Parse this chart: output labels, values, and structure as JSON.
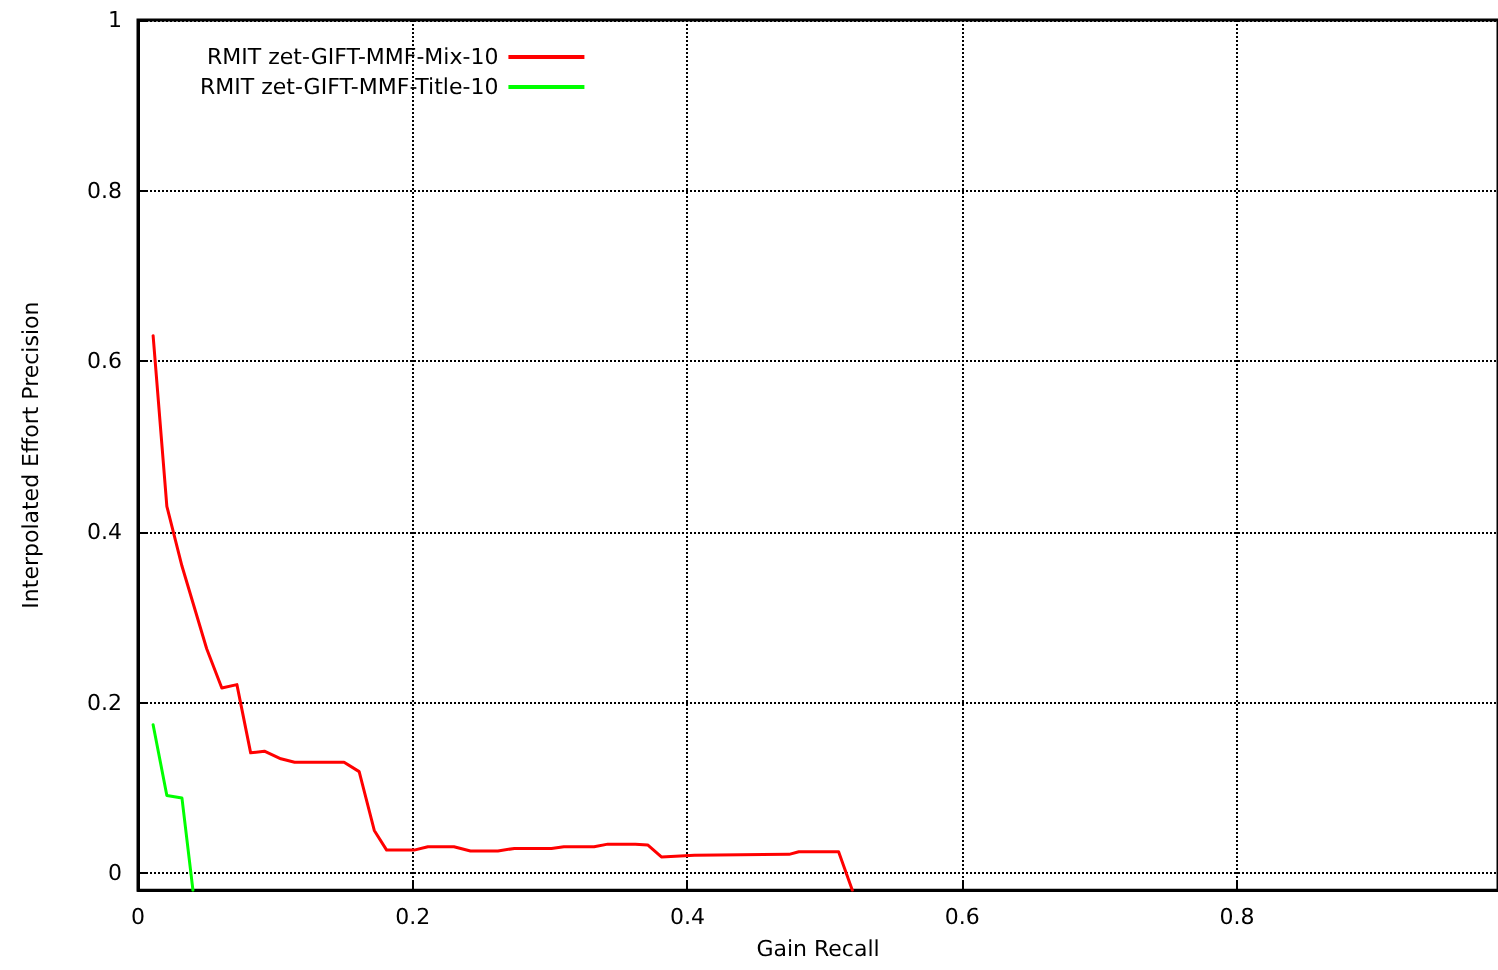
{
  "chart_data": {
    "type": "line",
    "xlabel": "Gain Recall",
    "ylabel": "Interpolated Effort Precision",
    "xlim": [
      0,
      0.99
    ],
    "xticks": [
      0,
      0.2,
      0.4,
      0.6,
      0.8
    ],
    "ylim": [
      -0.02,
      1
    ],
    "yticks": [
      0,
      0.2,
      0.4,
      0.6,
      0.8,
      1
    ],
    "grid": true,
    "legend": "top left",
    "marker": "none",
    "line_style": "solid",
    "series": [
      {
        "name": "RMIT zet-GIFT-MMF-Mix-10",
        "color": "#ff0000",
        "x": [
          0.011,
          0.021,
          0.032,
          0.05,
          0.061,
          0.072,
          0.082,
          0.092,
          0.104,
          0.114,
          0.15,
          0.161,
          0.172,
          0.181,
          0.201,
          0.211,
          0.23,
          0.242,
          0.262,
          0.274,
          0.301,
          0.31,
          0.332,
          0.342,
          0.362,
          0.371,
          0.381,
          0.405,
          0.474,
          0.481,
          0.51,
          0.52
        ],
        "values": [
          0.63,
          0.43,
          0.36,
          0.263,
          0.217,
          0.221,
          0.141,
          0.143,
          0.134,
          0.13,
          0.13,
          0.119,
          0.05,
          0.027,
          0.027,
          0.031,
          0.031,
          0.026,
          0.026,
          0.029,
          0.029,
          0.031,
          0.031,
          0.034,
          0.034,
          0.033,
          0.019,
          0.021,
          0.022,
          0.025,
          0.025,
          -0.02
        ]
      },
      {
        "name": "RMIT zet-GIFT-MMF-Title-10",
        "color": "#00ff00",
        "x": [
          0.011,
          0.021,
          0.032,
          0.04
        ],
        "values": [
          0.174,
          0.091,
          0.088,
          -0.02
        ]
      }
    ]
  }
}
